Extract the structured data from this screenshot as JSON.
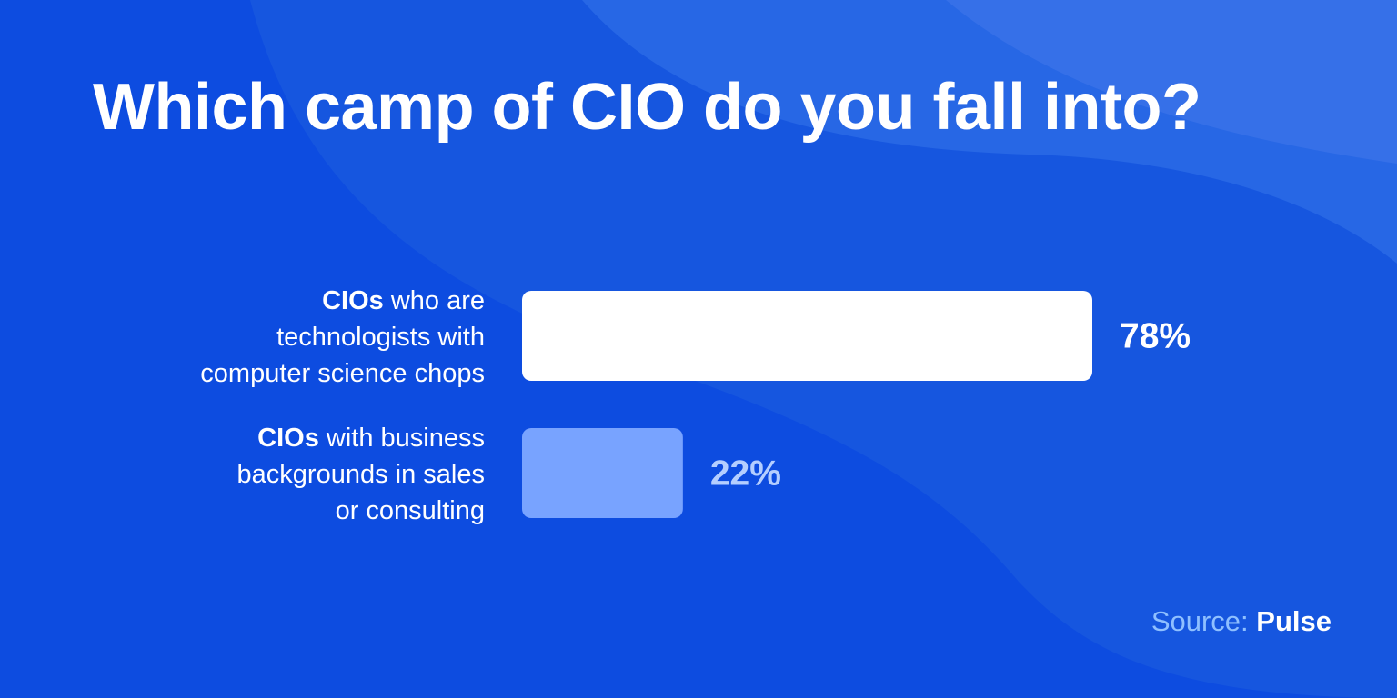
{
  "title": "Which camp of CIO do you fall into?",
  "colors": {
    "background": "#0d4ce0",
    "primary_bar": "#ffffff",
    "secondary_bar": "#78a3ff",
    "secondary_value": "#b4ceff",
    "source_label": "#8fc0ff"
  },
  "chart_data": {
    "type": "bar",
    "orientation": "horizontal",
    "categories": [
      {
        "bold": "CIOs",
        "lines": [
          " who are",
          "technologists with",
          "computer science chops"
        ]
      },
      {
        "bold": "CIOs",
        "lines": [
          " with business",
          "backgrounds in sales",
          "or consulting"
        ]
      }
    ],
    "values": [
      78,
      22
    ],
    "value_labels": [
      "78%",
      "22%"
    ],
    "xlim": [
      0,
      78
    ],
    "grid": false,
    "legend": "none"
  },
  "source": {
    "label": "Source:",
    "name": "Pulse"
  }
}
